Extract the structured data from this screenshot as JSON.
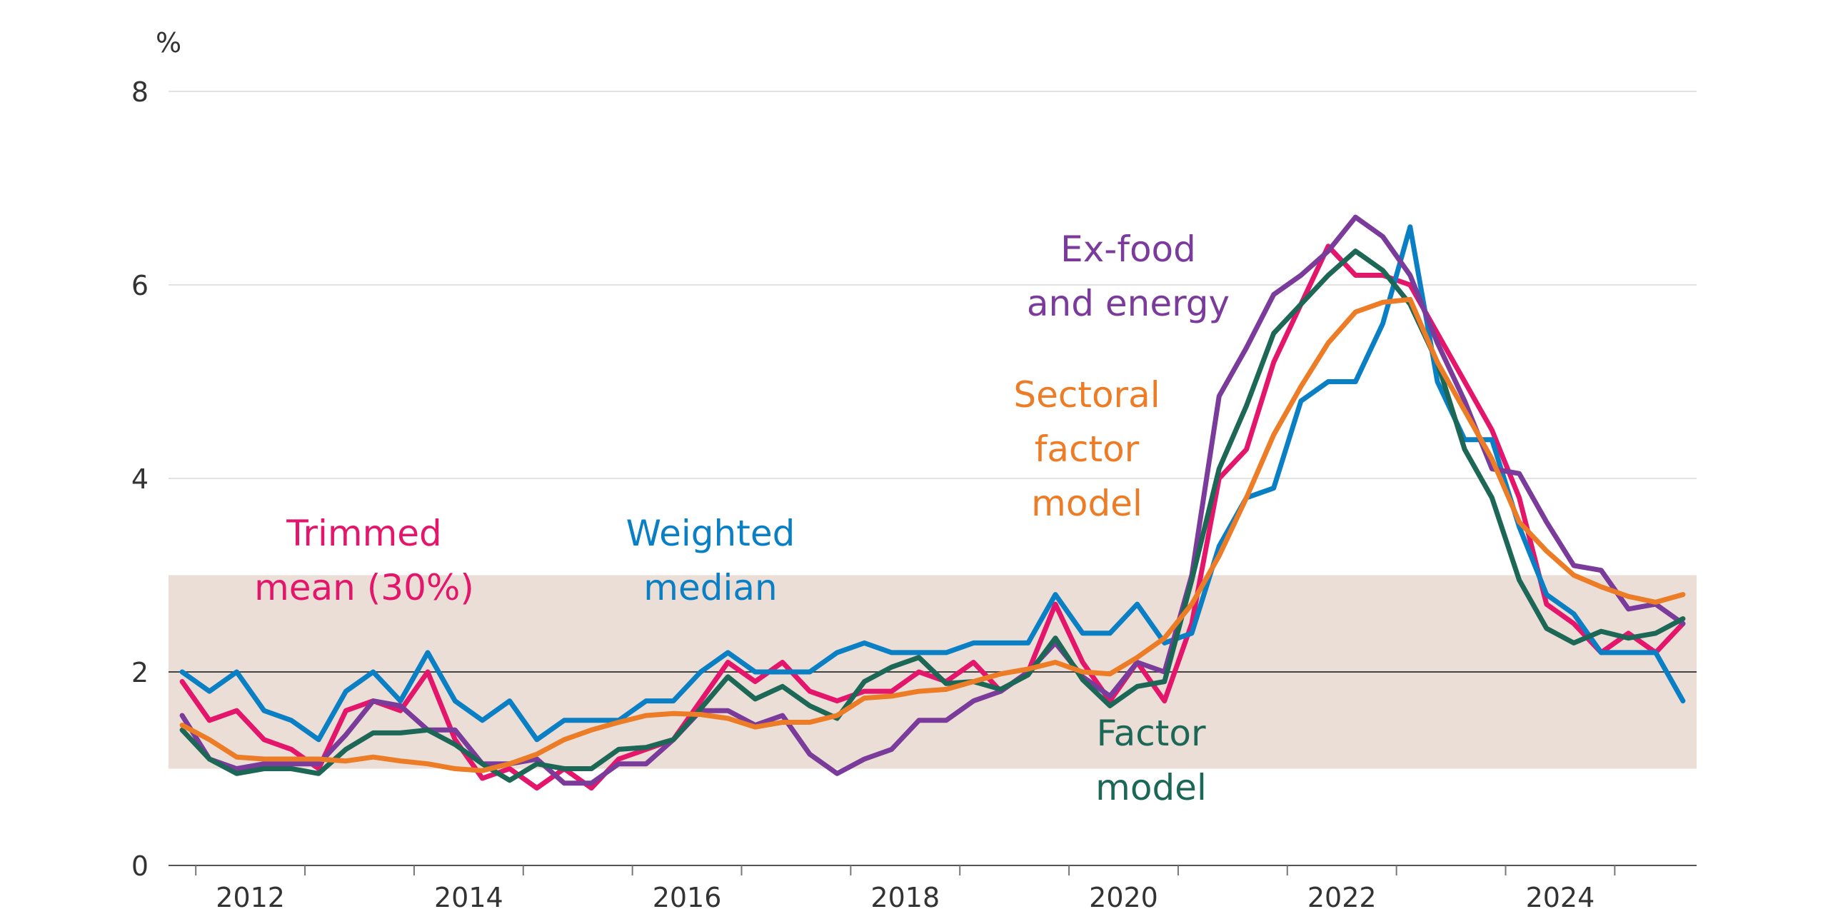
{
  "chart_data": {
    "type": "line",
    "unit_label": "%",
    "x_axis": {
      "range": [
        2011.75,
        2025.75
      ],
      "tick_labels": [
        "2012",
        "2014",
        "2016",
        "2018",
        "2020",
        "2022",
        "2024"
      ],
      "tick_values": [
        2012,
        2014,
        2016,
        2018,
        2020,
        2022,
        2024
      ]
    },
    "y_axis": {
      "range": [
        0,
        8
      ],
      "tick_values": [
        0,
        2,
        4,
        6,
        8
      ],
      "tick_labels": [
        "0",
        "2",
        "4",
        "6",
        "8"
      ]
    },
    "target_band": {
      "from": 1,
      "to": 3,
      "color": "#eaded7"
    },
    "target_line": 2,
    "grid": true,
    "x": [
      2011.875,
      2012.125,
      2012.375,
      2012.625,
      2012.875,
      2013.125,
      2013.375,
      2013.625,
      2013.875,
      2014.125,
      2014.375,
      2014.625,
      2014.875,
      2015.125,
      2015.375,
      2015.625,
      2015.875,
      2016.125,
      2016.375,
      2016.625,
      2016.875,
      2017.125,
      2017.375,
      2017.625,
      2017.875,
      2018.125,
      2018.375,
      2018.625,
      2018.875,
      2019.125,
      2019.375,
      2019.625,
      2019.875,
      2020.125,
      2020.375,
      2020.625,
      2020.875,
      2021.125,
      2021.375,
      2021.625,
      2021.875,
      2022.125,
      2022.375,
      2022.625,
      2022.875,
      2023.125,
      2023.375,
      2023.625,
      2023.875,
      2024.125,
      2024.375,
      2024.625,
      2024.875,
      2025.125,
      2025.375,
      2025.625
    ],
    "series": [
      {
        "name": "Trimmed mean (30%)",
        "label_lines": [
          "Trimmed",
          "mean (30%)"
        ],
        "color": "#e3166b",
        "values": [
          1.9,
          1.5,
          1.6,
          1.3,
          1.2,
          1.0,
          1.6,
          1.7,
          1.6,
          2.0,
          1.3,
          0.9,
          1.0,
          0.8,
          1.0,
          0.8,
          1.1,
          1.2,
          1.3,
          1.7,
          2.1,
          1.9,
          2.1,
          1.8,
          1.7,
          1.8,
          1.8,
          2.0,
          1.9,
          2.1,
          1.8,
          2.0,
          2.7,
          2.1,
          1.7,
          2.1,
          1.7,
          2.5,
          4.0,
          4.3,
          5.2,
          5.8,
          6.4,
          6.1,
          6.1,
          6.0,
          5.5,
          5.0,
          4.5,
          3.8,
          2.7,
          2.5,
          2.2,
          2.4,
          2.2,
          2.5
        ]
      },
      {
        "name": "Weighted median",
        "label_lines": [
          "Weighted",
          "median"
        ],
        "color": "#0b7fc4",
        "values": [
          2.0,
          1.8,
          2.0,
          1.6,
          1.5,
          1.3,
          1.8,
          2.0,
          1.7,
          2.2,
          1.7,
          1.5,
          1.7,
          1.3,
          1.5,
          1.5,
          1.5,
          1.7,
          1.7,
          2.0,
          2.2,
          2.0,
          2.0,
          2.0,
          2.2,
          2.3,
          2.2,
          2.2,
          2.2,
          2.3,
          2.3,
          2.3,
          2.8,
          2.4,
          2.4,
          2.7,
          2.3,
          2.4,
          3.3,
          3.8,
          3.9,
          4.8,
          5.0,
          5.0,
          5.6,
          6.6,
          5.0,
          4.4,
          4.4,
          3.5,
          2.8,
          2.6,
          2.2,
          2.2,
          2.2,
          1.7
        ]
      },
      {
        "name": "Ex-food and energy",
        "label_lines": [
          "Ex-food",
          "and energy"
        ],
        "color": "#7a3b9b",
        "values": [
          1.55,
          1.1,
          1.0,
          1.05,
          1.05,
          1.05,
          1.35,
          1.7,
          1.65,
          1.4,
          1.4,
          1.05,
          1.05,
          1.1,
          0.85,
          0.85,
          1.05,
          1.05,
          1.3,
          1.6,
          1.6,
          1.45,
          1.55,
          1.15,
          0.95,
          1.1,
          1.2,
          1.5,
          1.5,
          1.7,
          1.8,
          2.0,
          2.3,
          1.95,
          1.75,
          2.1,
          2.0,
          3.0,
          4.85,
          5.35,
          5.9,
          6.1,
          6.35,
          6.7,
          6.5,
          6.1,
          5.4,
          4.8,
          4.1,
          4.05,
          3.55,
          3.1,
          3.05,
          2.65,
          2.7,
          2.5
        ]
      },
      {
        "name": "Factor model",
        "label_lines": [
          "Factor",
          "model"
        ],
        "color": "#1d6757",
        "values": [
          1.4,
          1.1,
          0.95,
          1.0,
          1.0,
          0.95,
          1.2,
          1.37,
          1.37,
          1.4,
          1.25,
          1.05,
          0.88,
          1.05,
          1.0,
          1.0,
          1.2,
          1.22,
          1.3,
          1.62,
          1.95,
          1.72,
          1.85,
          1.65,
          1.52,
          1.9,
          2.05,
          2.15,
          1.88,
          1.9,
          1.82,
          1.97,
          2.35,
          1.92,
          1.65,
          1.85,
          1.9,
          2.95,
          4.1,
          4.75,
          5.5,
          5.8,
          6.1,
          6.35,
          6.15,
          5.8,
          5.2,
          4.3,
          3.8,
          2.95,
          2.45,
          2.3,
          2.42,
          2.35,
          2.4,
          2.55
        ]
      },
      {
        "name": "Sectoral factor model",
        "label_lines": [
          "Sectoral",
          "factor",
          "model"
        ],
        "color": "#ec7c26",
        "values": [
          1.45,
          1.3,
          1.12,
          1.1,
          1.1,
          1.1,
          1.08,
          1.12,
          1.08,
          1.05,
          1.0,
          0.98,
          1.05,
          1.15,
          1.3,
          1.4,
          1.48,
          1.55,
          1.57,
          1.56,
          1.52,
          1.43,
          1.48,
          1.48,
          1.55,
          1.73,
          1.75,
          1.8,
          1.82,
          1.9,
          1.98,
          2.03,
          2.1,
          2.0,
          1.98,
          2.15,
          2.35,
          2.7,
          3.2,
          3.8,
          4.45,
          4.95,
          5.4,
          5.72,
          5.82,
          5.85,
          5.2,
          4.7,
          4.2,
          3.55,
          3.25,
          3.0,
          2.88,
          2.78,
          2.72,
          2.8
        ]
      }
    ]
  }
}
